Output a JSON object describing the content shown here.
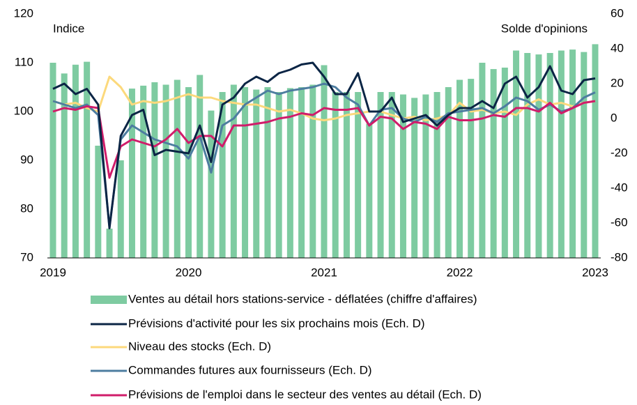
{
  "chart_data": {
    "type": "bar_line",
    "annotations": [
      "Indice",
      "Solde d'opinions"
    ],
    "categories": [
      "2019",
      null,
      null,
      null,
      null,
      null,
      null,
      null,
      null,
      null,
      null,
      null,
      "2020",
      null,
      null,
      null,
      null,
      null,
      null,
      null,
      null,
      null,
      null,
      null,
      "2021",
      null,
      null,
      null,
      null,
      null,
      null,
      null,
      null,
      null,
      null,
      null,
      "2022",
      null,
      null,
      null,
      null,
      null,
      null,
      null,
      null,
      null,
      null,
      null,
      "2023"
    ],
    "ylim": [
      70,
      120
    ],
    "yticks": [
      70,
      80,
      90,
      100,
      110,
      120
    ],
    "y2lim": [
      -80,
      60
    ],
    "y2ticks": [
      -80,
      -60,
      -40,
      -20,
      0,
      20,
      40,
      60
    ],
    "series": [
      {
        "name": "Ventes au détail hors stations-service - déflatées (chiffre d'affaires)",
        "type": "bar",
        "color": "#7ecba1",
        "values": [
          110,
          107.8,
          109.6,
          110.2,
          93,
          76,
          90,
          104.7,
          105.3,
          106,
          105.5,
          106.5,
          105,
          107.5,
          100.2,
          104,
          105.5,
          105,
          104.5,
          105,
          104,
          104.8,
          105,
          105.5,
          109.5,
          104,
          104,
          104,
          97.5,
          104,
          104,
          103.5,
          102.8,
          103.5,
          104,
          105,
          106.5,
          106.7,
          110,
          108.7,
          109,
          112.5,
          112,
          111.7,
          112,
          112.5,
          112.7,
          112.2,
          113.8
        ]
      },
      {
        "name": "Prévisions d'activité pour les six prochains mois (Ech. D)",
        "type": "line",
        "axis": "y2",
        "color": "#0b2545",
        "values": [
          17,
          20,
          14,
          17,
          8,
          -63,
          -10,
          2,
          5,
          -21,
          -18,
          -19,
          -20,
          -4,
          -25,
          8,
          12,
          20,
          24,
          21,
          26,
          28,
          31,
          32,
          24,
          14,
          14,
          26,
          4,
          4,
          12,
          -2,
          0,
          2,
          -4,
          2,
          6,
          6,
          10,
          6,
          20,
          24,
          12,
          18,
          30,
          16,
          14,
          22,
          23
        ]
      },
      {
        "name": "Niveau des stocks (Ech. D)",
        "type": "line",
        "axis": "y2",
        "color": "#fcd97c",
        "values": [
          10,
          8,
          9,
          6,
          4,
          24,
          18,
          8,
          10,
          9,
          10,
          12,
          14,
          12,
          12,
          10,
          9,
          8,
          8,
          6,
          4,
          5,
          3,
          0,
          -1,
          0,
          2,
          3,
          4,
          4,
          2,
          0,
          1,
          -1,
          0,
          2,
          9,
          4,
          5,
          3,
          4,
          2,
          8,
          11,
          8,
          9,
          7,
          9,
          10
        ]
      },
      {
        "name": "Commandes futures aux fournisseurs  (Ech. D)",
        "type": "line",
        "axis": "y2",
        "color": "#4d7da0",
        "values": [
          10,
          8,
          6,
          8,
          2,
          -62,
          -12,
          -4,
          -8,
          -12,
          -14,
          -16,
          -23,
          -10,
          -31,
          -4,
          0,
          8,
          12,
          16,
          14,
          16,
          17,
          18,
          20,
          18,
          12,
          8,
          -4,
          5,
          6,
          0,
          -2,
          1,
          -2,
          3,
          4,
          5,
          6,
          3,
          7,
          12,
          10,
          5,
          8,
          4,
          6,
          12,
          15
        ]
      },
      {
        "name": "Prévisions de l'emploi dans le secteur des ventes au détail (Ech. D)",
        "type": "line",
        "axis": "y2",
        "color": "#d01c6a",
        "values": [
          4,
          6,
          5,
          7,
          6,
          -34,
          -16,
          -12,
          -14,
          -16,
          -12,
          -6,
          -14,
          -10,
          -10,
          -16,
          -4,
          -4,
          -3,
          -2,
          0,
          1,
          3,
          2,
          6,
          5,
          5,
          6,
          -4,
          1,
          0,
          -6,
          -2,
          -3,
          -6,
          1,
          -1,
          -1,
          0,
          2,
          1,
          6,
          6,
          4,
          9,
          3,
          6,
          9,
          10
        ]
      }
    ]
  }
}
